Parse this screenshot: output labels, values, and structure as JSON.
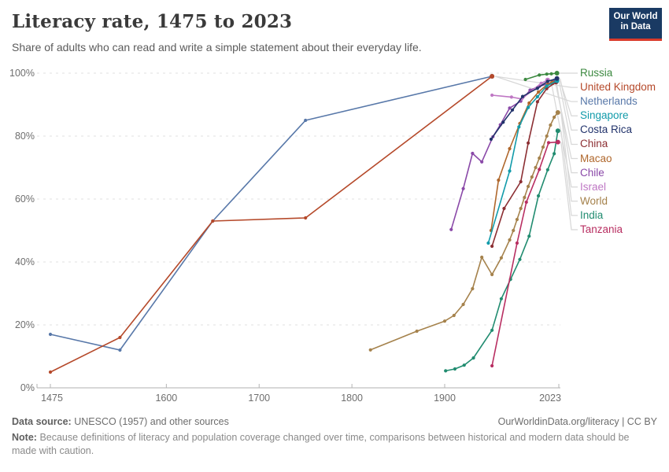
{
  "header": {
    "title": "Literacy rate, 1475 to 2023",
    "subtitle": "Share of adults who can read and write a simple statement about their everyday life."
  },
  "logo": {
    "line1": "Our World",
    "line2": "in Data",
    "bg": "#1a3a63",
    "accent": "#d93b2b"
  },
  "chart_data": {
    "type": "line",
    "title": "Literacy rate, 1475 to 2023",
    "xlabel": "",
    "ylabel": "",
    "xlim": [
      1475,
      2023
    ],
    "ylim": [
      0,
      100
    ],
    "x_ticks": [
      1475,
      1600,
      1700,
      1800,
      1900,
      2023
    ],
    "y_ticks": [
      0,
      20,
      40,
      60,
      80,
      100
    ],
    "y_tick_labels": [
      "0%",
      "20%",
      "40%",
      "60%",
      "80%",
      "100%"
    ],
    "grid": "horizontal-dashed",
    "legend_position": "right",
    "series": [
      {
        "name": "Russia",
        "color": "#3c8940",
        "points": [
          [
            1987,
            98
          ],
          [
            2002,
            99.4
          ],
          [
            2010,
            99.7
          ],
          [
            2015,
            99.8
          ],
          [
            2021,
            100
          ]
        ]
      },
      {
        "name": "United Kingdom",
        "color": "#b5492a",
        "points": [
          [
            1475,
            5
          ],
          [
            1550,
            16
          ],
          [
            1650,
            53
          ],
          [
            1750,
            54
          ],
          [
            1951,
            99
          ]
        ]
      },
      {
        "name": "Netherlands",
        "color": "#5878a9",
        "points": [
          [
            1475,
            17
          ],
          [
            1550,
            12
          ],
          [
            1650,
            53
          ],
          [
            1750,
            85
          ],
          [
            1951,
            99
          ]
        ]
      },
      {
        "name": "Singapore",
        "color": "#129baa",
        "points": [
          [
            1947,
            46
          ],
          [
            1970,
            68.9
          ],
          [
            1980,
            82.9
          ],
          [
            1990,
            89.1
          ],
          [
            2000,
            92.5
          ],
          [
            2010,
            95.9
          ],
          [
            2021,
            97.6
          ]
        ]
      },
      {
        "name": "Costa Rica",
        "color": "#22336b",
        "points": [
          [
            1950,
            79
          ],
          [
            1963,
            84.4
          ],
          [
            1973,
            88.3
          ],
          [
            1984,
            92.6
          ],
          [
            2000,
            95.2
          ],
          [
            2011,
            97.4
          ],
          [
            2021,
            98.3
          ]
        ]
      },
      {
        "name": "China",
        "color": "#8c2f33",
        "points": [
          [
            1951,
            45
          ],
          [
            1964,
            57
          ],
          [
            1982,
            65.5
          ],
          [
            1990,
            77.8
          ],
          [
            2000,
            90.9
          ],
          [
            2010,
            95.1
          ],
          [
            2020,
            97.2
          ]
        ]
      },
      {
        "name": "Macao",
        "color": "#af672c",
        "points": [
          [
            1950,
            50
          ],
          [
            1958,
            66
          ],
          [
            1970,
            76
          ],
          [
            1981,
            84
          ],
          [
            1991,
            90.5
          ],
          [
            2001,
            94
          ],
          [
            2011,
            96.5
          ],
          [
            2016,
            96.9
          ]
        ]
      },
      {
        "name": "Chile",
        "color": "#8a49a8",
        "points": [
          [
            1907,
            50.3
          ],
          [
            1920,
            63.3
          ],
          [
            1930,
            74.5
          ],
          [
            1940,
            71.8
          ],
          [
            1952,
            79.8
          ],
          [
            1960,
            83.6
          ],
          [
            1970,
            88.9
          ],
          [
            1982,
            91.1
          ],
          [
            1992,
            94.6
          ],
          [
            2002,
            95.8
          ],
          [
            2017,
            97.2
          ]
        ]
      },
      {
        "name": "Israel",
        "color": "#bf77c4",
        "points": [
          [
            1951,
            93
          ],
          [
            1972,
            92.4
          ],
          [
            1983,
            91.8
          ],
          [
            2004,
            96.8
          ],
          [
            2011,
            97.8
          ]
        ]
      },
      {
        "name": "World",
        "color": "#a5824c",
        "points": [
          [
            1820,
            12.05
          ],
          [
            1870,
            18
          ],
          [
            1900,
            21.2
          ],
          [
            1910,
            23
          ],
          [
            1920,
            26.5
          ],
          [
            1930,
            31.5
          ],
          [
            1940,
            41.5
          ],
          [
            1951,
            36
          ],
          [
            1961,
            41.3
          ],
          [
            1970,
            47
          ],
          [
            1974,
            50
          ],
          [
            1978,
            53.5
          ],
          [
            1982,
            57
          ],
          [
            1986,
            60.5
          ],
          [
            1990,
            64
          ],
          [
            1994,
            67
          ],
          [
            1998,
            70
          ],
          [
            2002,
            73
          ],
          [
            2006,
            76.5
          ],
          [
            2010,
            80
          ],
          [
            2014,
            83.5
          ],
          [
            2018,
            86
          ],
          [
            2022,
            87.5
          ]
        ]
      },
      {
        "name": "India",
        "color": "#218c70",
        "points": [
          [
            1901,
            5.4
          ],
          [
            1911,
            6
          ],
          [
            1921,
            7.2
          ],
          [
            1931,
            9.5
          ],
          [
            1951,
            18.3
          ],
          [
            1961,
            28.3
          ],
          [
            1971,
            34.5
          ],
          [
            1981,
            40.8
          ],
          [
            1991,
            48.2
          ],
          [
            2001,
            61
          ],
          [
            2011,
            69.3
          ],
          [
            2018,
            74.4
          ],
          [
            2022,
            81.7
          ]
        ]
      },
      {
        "name": "Tanzania",
        "color": "#b82e61",
        "points": [
          [
            1951,
            7
          ],
          [
            1978,
            46
          ],
          [
            1988,
            59
          ],
          [
            2002,
            69.4
          ],
          [
            2012,
            77.9
          ],
          [
            2022,
            78.1
          ]
        ]
      }
    ]
  },
  "footer": {
    "source_label": "Data source:",
    "source_text": "UNESCO (1957) and other sources",
    "attribution": "OurWorldinData.org/literacy | CC BY",
    "note_label": "Note:",
    "note_text": "Because definitions of literacy and population coverage changed over time, comparisons between historical and modern data should be made with caution."
  }
}
